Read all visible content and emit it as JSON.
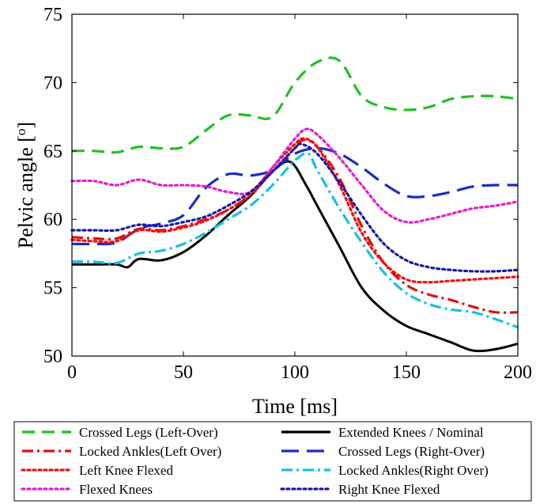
{
  "chart_data": {
    "type": "line",
    "xlabel": "Time [ms]",
    "ylabel_main": "Pelvic angle [",
    "ylabel_sup": "o",
    "ylabel_close": "]",
    "xlim": [
      0,
      200
    ],
    "ylim": [
      50,
      75
    ],
    "x_ticks": [
      0,
      50,
      100,
      150,
      200
    ],
    "y_ticks": [
      50,
      55,
      60,
      65,
      70,
      75
    ],
    "legend_position": "bottom-outside",
    "series": [
      {
        "name": "Crossed Legs (Left-Over)",
        "color": "#22c022",
        "dash": "dashed",
        "x": [
          0,
          10,
          20,
          30,
          40,
          50,
          60,
          70,
          80,
          90,
          100,
          110,
          120,
          130,
          140,
          150,
          160,
          170,
          180,
          190,
          200
        ],
        "y": [
          65.0,
          65.0,
          64.9,
          65.3,
          65.2,
          65.3,
          66.5,
          67.6,
          67.6,
          67.5,
          70.0,
          71.5,
          71.6,
          69.0,
          68.2,
          68.0,
          68.2,
          68.8,
          69.0,
          69.0,
          68.8
        ]
      },
      {
        "name": "Extended Knees / Nominal",
        "color": "#000000",
        "dash": "solid",
        "x": [
          0,
          10,
          20,
          25,
          30,
          40,
          50,
          60,
          70,
          80,
          90,
          98,
          105,
          110,
          120,
          130,
          140,
          150,
          160,
          170,
          180,
          190,
          200
        ],
        "y": [
          56.7,
          56.7,
          56.7,
          56.5,
          57.1,
          57.0,
          57.6,
          58.8,
          60.3,
          61.7,
          63.5,
          64.2,
          62.5,
          61.0,
          58.0,
          55.0,
          53.3,
          52.2,
          51.6,
          51.0,
          50.4,
          50.5,
          50.9
        ]
      },
      {
        "name": "Locked Ankles(Left Over)",
        "color": "#dd1111",
        "dash": "dashdot",
        "x": [
          0,
          10,
          20,
          30,
          40,
          50,
          60,
          70,
          80,
          90,
          100,
          104,
          110,
          120,
          130,
          140,
          150,
          160,
          170,
          180,
          190,
          200
        ],
        "y": [
          58.7,
          58.6,
          58.6,
          59.3,
          59.2,
          59.5,
          60.0,
          60.7,
          61.8,
          63.5,
          65.2,
          65.8,
          65.3,
          63.0,
          59.5,
          56.8,
          55.2,
          54.5,
          54.1,
          53.6,
          53.2,
          53.2
        ]
      },
      {
        "name": "Crossed Legs (Right-Over)",
        "color": "#1a2dbf",
        "dash": "longdash",
        "x": [
          0,
          10,
          20,
          30,
          40,
          50,
          60,
          70,
          80,
          90,
          100,
          110,
          120,
          130,
          140,
          150,
          160,
          170,
          180,
          190,
          200
        ],
        "y": [
          58.2,
          58.2,
          58.3,
          59.3,
          59.7,
          60.3,
          62.3,
          63.3,
          63.2,
          63.6,
          64.8,
          65.2,
          64.8,
          63.8,
          62.6,
          61.7,
          61.7,
          62.0,
          62.4,
          62.5,
          62.5
        ]
      },
      {
        "name": "Left Knee Flexed",
        "color": "#ee1111",
        "dash": "dotted",
        "x": [
          0,
          10,
          20,
          30,
          40,
          50,
          60,
          70,
          80,
          90,
          100,
          104,
          110,
          120,
          130,
          140,
          150,
          160,
          170,
          180,
          190,
          200
        ],
        "y": [
          58.5,
          58.4,
          58.4,
          59.2,
          59.1,
          59.4,
          59.9,
          60.7,
          61.8,
          63.8,
          65.5,
          65.9,
          65.3,
          62.5,
          59.0,
          56.8,
          55.6,
          55.4,
          55.5,
          55.6,
          55.7,
          55.8
        ]
      },
      {
        "name": "Locked Ankles(Right Over)",
        "color": "#18c0e0",
        "dash": "dashdot",
        "x": [
          0,
          10,
          20,
          30,
          40,
          50,
          60,
          70,
          80,
          90,
          100,
          106,
          110,
          120,
          130,
          140,
          150,
          160,
          170,
          180,
          190,
          200
        ],
        "y": [
          56.9,
          56.9,
          56.8,
          57.5,
          57.7,
          58.2,
          59.0,
          60.0,
          61.0,
          62.5,
          64.3,
          64.8,
          63.6,
          60.8,
          58.3,
          56.1,
          54.6,
          53.8,
          53.4,
          53.2,
          52.7,
          52.1
        ]
      },
      {
        "name": "Flexed Knees",
        "color": "#e020d0",
        "dash": "dotted",
        "x": [
          0,
          10,
          20,
          30,
          40,
          50,
          60,
          70,
          80,
          90,
          100,
          105,
          110,
          120,
          130,
          140,
          150,
          160,
          170,
          180,
          190,
          200
        ],
        "y": [
          62.8,
          62.8,
          62.5,
          62.9,
          62.5,
          62.5,
          62.4,
          62.0,
          62.0,
          63.8,
          65.9,
          66.6,
          66.2,
          64.5,
          62.5,
          60.6,
          59.8,
          60.0,
          60.4,
          60.8,
          61.0,
          61.3
        ]
      },
      {
        "name": "Right Knee Flexed",
        "color": "#1a1aa0",
        "dash": "dotted",
        "x": [
          0,
          10,
          20,
          30,
          40,
          50,
          60,
          70,
          80,
          90,
          100,
          103,
          110,
          120,
          130,
          140,
          150,
          160,
          170,
          180,
          190,
          200
        ],
        "y": [
          59.2,
          59.2,
          59.2,
          59.6,
          59.5,
          59.8,
          60.2,
          61.0,
          62.0,
          63.5,
          65.2,
          65.5,
          64.8,
          62.7,
          60.3,
          58.2,
          57.0,
          56.5,
          56.3,
          56.2,
          56.2,
          56.3
        ]
      }
    ]
  }
}
